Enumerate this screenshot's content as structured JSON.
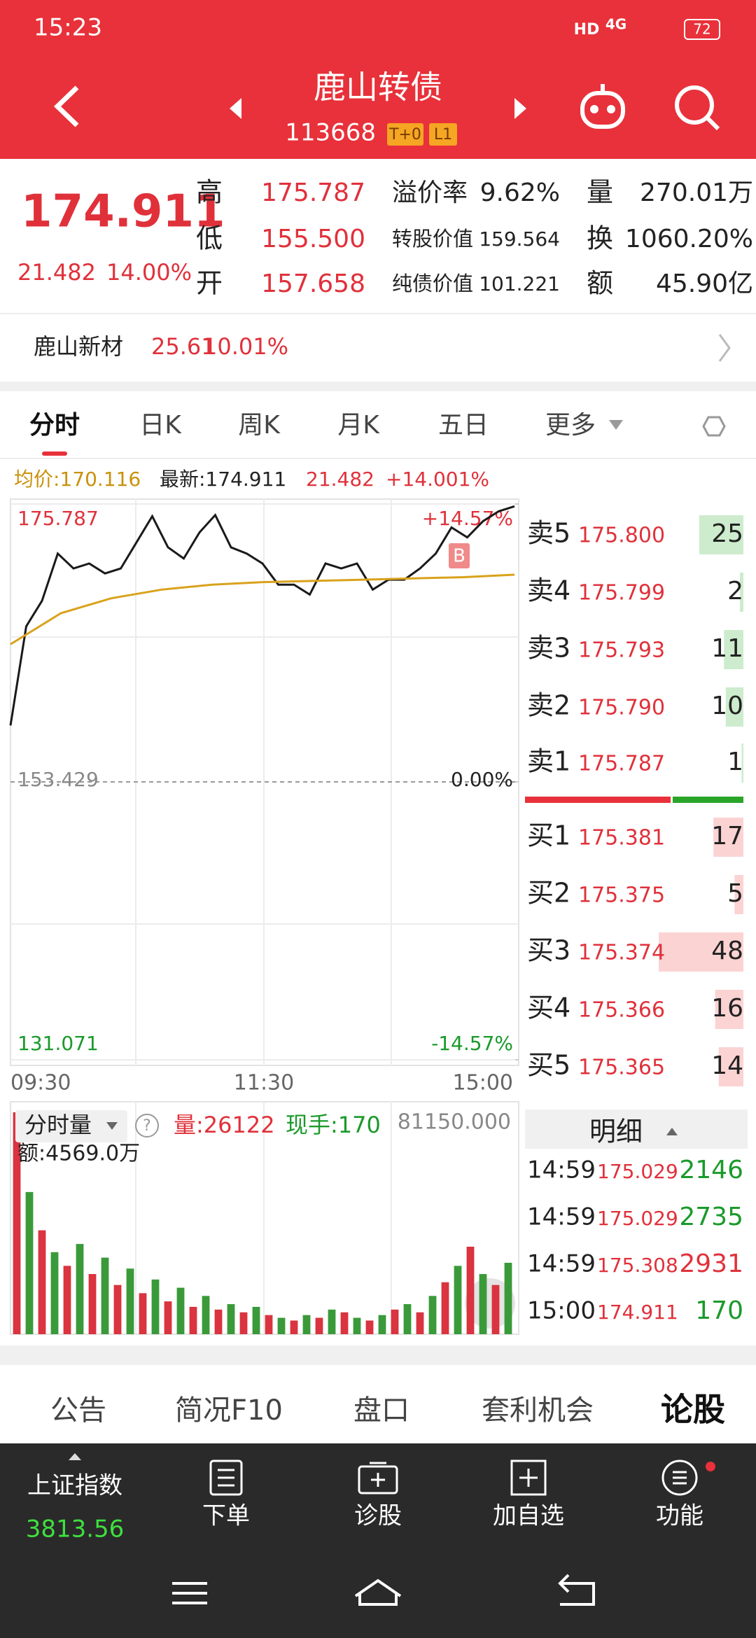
{
  "status_bar": {
    "time": "15:23",
    "network": "HD",
    "signal": "4G",
    "battery": "72"
  },
  "header": {
    "title": "鹿山转债",
    "code": "113668",
    "tags": [
      "T+0",
      "L1"
    ]
  },
  "quote": {
    "price": "174.911",
    "change": "21.482",
    "change_pct": "14.00%",
    "stats": [
      {
        "label": "高",
        "value": "175.787"
      },
      {
        "label": "低",
        "value": "155.500"
      },
      {
        "label": "开",
        "value": "157.658"
      },
      {
        "label": "溢价率",
        "value": "9.62%"
      },
      {
        "label": "转股价值",
        "value": "159.564"
      },
      {
        "label": "纯债价值",
        "value": "101.221"
      },
      {
        "label": "量",
        "value": "270.01万"
      },
      {
        "label": "换",
        "value": "1060.20%"
      },
      {
        "label": "额",
        "value": "45.90亿"
      }
    ]
  },
  "related": {
    "name": "鹿山新材",
    "price": "25.61",
    "change_pct": "10.01%"
  },
  "tabs": [
    "分时",
    "日K",
    "周K",
    "月K",
    "五日",
    "更多"
  ],
  "chart": {
    "info": {
      "avg": "均价:170.116",
      "last": "最新:174.911",
      "change": "21.482",
      "change_pct": "+14.001%"
    },
    "ylim": [
      131.071,
      175.787
    ],
    "yticks": [
      131.071,
      153.429,
      175.787
    ],
    "y2lim": [
      -14.57,
      14.57
    ],
    "y2ticks": [
      {
        "value": -14.57,
        "label": "-14.57%"
      },
      {
        "value": 0,
        "label": "0.00%"
      },
      {
        "value": 14.57,
        "label": "+14.57%"
      }
    ],
    "times": [
      "09:30",
      "11:30",
      "15:00"
    ],
    "buy_marker": "B",
    "series": [
      {
        "name": "price",
        "color": "#1a1a1a",
        "values": [
          157.97,
          165.95,
          168.0,
          171.8,
          170.6,
          171.0,
          170.2,
          170.6,
          172.7,
          174.8,
          172.3,
          171.4,
          173.5,
          174.9,
          172.3,
          171.8,
          171.0,
          169.3,
          169.3,
          168.5,
          171.0,
          170.6,
          171.0,
          168.9,
          169.7,
          169.7,
          170.6,
          171.8,
          173.9,
          173.1,
          174.4,
          175.2,
          175.6
        ]
      },
      {
        "name": "avg",
        "color": "#d9a21b",
        "values": [
          164.5,
          167.0,
          168.2,
          168.9,
          169.3,
          169.5,
          169.6,
          169.7,
          169.8,
          169.9,
          170.1
        ]
      }
    ],
    "volume": {
      "label": "分时量",
      "help": "?",
      "vol": "量:26122",
      "hand": "现手:170",
      "max_label": "81150.000",
      "amount": "额:4569.0万",
      "ylim": [
        0,
        81150
      ],
      "values": [
        81150,
        52000,
        38000,
        30000,
        25000,
        33000,
        22000,
        28000,
        18000,
        24000,
        15000,
        20000,
        12000,
        17000,
        10000,
        14000,
        9000,
        11000,
        8000,
        10000,
        7000,
        6000,
        5000,
        7000,
        6000,
        9000,
        8000,
        6000,
        5000,
        7000,
        9000,
        11000,
        8000,
        14000,
        19000,
        25000,
        32000,
        22000,
        18000,
        26122
      ],
      "colors": [
        "#d9343f",
        "#3a9a3a"
      ]
    }
  },
  "order_book": {
    "asks": [
      {
        "label": "卖5",
        "price": "175.800",
        "volume": 25
      },
      {
        "label": "卖4",
        "price": "175.799",
        "volume": 2
      },
      {
        "label": "卖3",
        "price": "175.793",
        "volume": 11
      },
      {
        "label": "卖2",
        "price": "175.790",
        "volume": 10
      },
      {
        "label": "卖1",
        "price": "175.787",
        "volume": 1
      }
    ],
    "bids": [
      {
        "label": "买1",
        "price": "175.381",
        "volume": 17
      },
      {
        "label": "买2",
        "price": "175.375",
        "volume": 5
      },
      {
        "label": "买3",
        "price": "175.374",
        "volume": 48
      },
      {
        "label": "买4",
        "price": "175.366",
        "volume": 16
      },
      {
        "label": "买5",
        "price": "175.365",
        "volume": 14
      }
    ]
  },
  "details": {
    "title": "明细",
    "rows": [
      {
        "time": "14:59",
        "price": "175.029",
        "volume": "2146",
        "color": "#1a9a2a"
      },
      {
        "time": "14:59",
        "price": "175.029",
        "volume": "2735",
        "color": "#1a9a2a"
      },
      {
        "time": "14:59",
        "price": "175.308",
        "volume": "2931",
        "color": "#e0313b"
      },
      {
        "time": "15:00",
        "price": "174.911",
        "volume": "170",
        "color": "#1a9a2a"
      }
    ]
  },
  "bottom_tabs": [
    "公告",
    "简况F10",
    "盘口",
    "套利机会",
    "论股"
  ],
  "nav": {
    "index_name": "上证指数",
    "index_value": "3813.56",
    "items": [
      "下单",
      "诊股",
      "加自选",
      "功能"
    ]
  }
}
